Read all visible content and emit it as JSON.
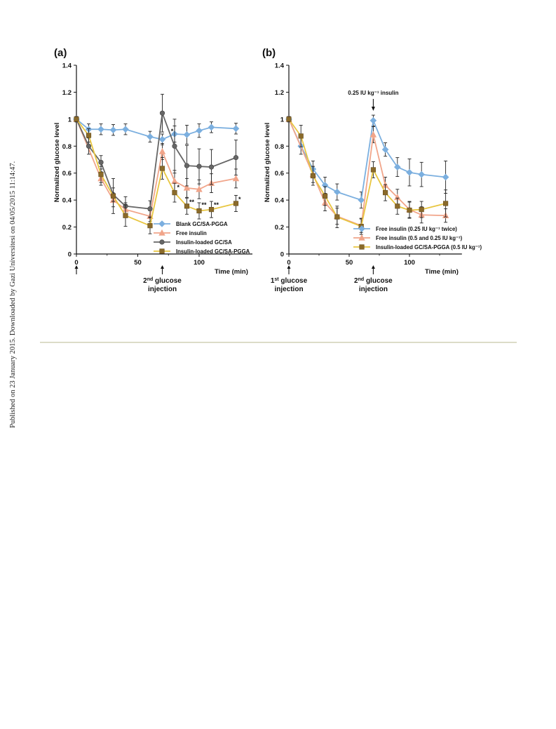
{
  "page": {
    "side_note": "Published on 23 January 2015. Downloaded by Gazi Universitesi on 04/05/2015 11:14:47."
  },
  "chart_data": [
    {
      "panel_label": "(a)",
      "type": "line",
      "xlabel": "Time (min)",
      "ylabel": "Normalized glucose level",
      "xlim": [
        0,
        140
      ],
      "ylim": [
        0,
        1.4
      ],
      "x_ticks": [
        "0",
        "50",
        "100"
      ],
      "y_ticks": [
        "0",
        "0.2",
        "0.4",
        "0.6",
        "0.8",
        "1",
        "1.2",
        "1.4"
      ],
      "legend_position": "bottom-right",
      "series": [
        {
          "name": "Blank GC/SA-PGGA",
          "color": "#7bafdf",
          "marker": "diamond",
          "x": [
            0,
            10,
            20,
            30,
            40,
            60,
            70,
            80,
            90,
            100,
            110,
            130
          ],
          "y": [
            1.0,
            0.925,
            0.925,
            0.92,
            0.925,
            0.87,
            0.85,
            0.89,
            0.885,
            0.915,
            0.94,
            0.93
          ],
          "err": [
            0.02,
            0.04,
            0.04,
            0.04,
            0.04,
            0.04,
            0.04,
            0.06,
            0.07,
            0.05,
            0.04,
            0.04
          ]
        },
        {
          "name": "Free insulin",
          "color": "#f1a58a",
          "marker": "triangle",
          "x": [
            0,
            20,
            30,
            40,
            60,
            70,
            80,
            90,
            100,
            110,
            130
          ],
          "y": [
            1.0,
            0.56,
            0.4,
            0.33,
            0.28,
            0.76,
            0.54,
            0.49,
            0.48,
            0.525,
            0.56
          ],
          "err": [
            0.02,
            0.05,
            0.05,
            0.05,
            0.04,
            0.06,
            0.08,
            0.07,
            0.07,
            0.07,
            0.07
          ]
        },
        {
          "name": "Insulin-loaded GC/SA",
          "color": "#666666",
          "marker": "circle",
          "x": [
            0,
            10,
            20,
            30,
            40,
            60,
            70,
            80,
            90,
            100,
            110,
            130
          ],
          "y": [
            1.0,
            0.8,
            0.68,
            0.44,
            0.355,
            0.335,
            1.045,
            0.8,
            0.655,
            0.65,
            0.645,
            0.715
          ],
          "err": [
            0.02,
            0.06,
            0.05,
            0.05,
            0.07,
            0.06,
            0.14,
            0.2,
            0.15,
            0.13,
            0.13,
            0.13
          ]
        },
        {
          "name": "Insulin-loaded GC/SA-PGGA",
          "color": "#e8c640",
          "marker": "square",
          "x": [
            0,
            10,
            20,
            30,
            40,
            60,
            70,
            80,
            90,
            100,
            110,
            130
          ],
          "y": [
            1.0,
            0.88,
            0.59,
            0.43,
            0.285,
            0.21,
            0.635,
            0.455,
            0.355,
            0.32,
            0.33,
            0.375
          ],
          "err": [
            0.02,
            0.05,
            0.06,
            0.13,
            0.08,
            0.06,
            0.08,
            0.07,
            0.06,
            0.06,
            0.06,
            0.06
          ]
        }
      ],
      "annotations": [
        {
          "text": "*",
          "x": 77,
          "y": 0.895
        },
        {
          "text": "*",
          "x": 82,
          "y": 0.48
        },
        {
          "text": "**",
          "x": 92,
          "y": 0.37
        },
        {
          "text": "**",
          "x": 102,
          "y": 0.35
        },
        {
          "text": "**",
          "x": 112,
          "y": 0.35
        },
        {
          "text": "*",
          "x": 132,
          "y": 0.39
        }
      ],
      "arrows": [
        {
          "x": 0,
          "label_main": "",
          "label_sup": "",
          "label_rest": "",
          "label_line2": ""
        },
        {
          "x": 70,
          "label_main": "2",
          "label_sup": "nd",
          "label_rest": " glucose",
          "label_line2": "injection"
        }
      ],
      "top_arrow": null
    },
    {
      "panel_label": "(b)",
      "type": "line",
      "xlabel": "Time (min)",
      "ylabel": "Normalized glucose level",
      "xlim": [
        0,
        140
      ],
      "ylim": [
        0,
        1.4
      ],
      "x_ticks": [
        "0",
        "50",
        "100"
      ],
      "y_ticks": [
        "0",
        "0.2",
        "0.4",
        "0.6",
        "0.8",
        "1",
        "1.2",
        "1.4"
      ],
      "legend_position": "bottom-right",
      "series": [
        {
          "name": "Free insulin (0.25 IU kg⁻¹ twice)",
          "color": "#7bafdf",
          "marker": "diamond",
          "x": [
            0,
            10,
            20,
            30,
            40,
            60,
            70,
            80,
            90,
            100,
            110,
            130
          ],
          "y": [
            1.0,
            0.8,
            0.63,
            0.51,
            0.46,
            0.4,
            0.99,
            0.775,
            0.645,
            0.605,
            0.59,
            0.57
          ],
          "err": [
            0.02,
            0.06,
            0.06,
            0.06,
            0.06,
            0.06,
            0.04,
            0.05,
            0.07,
            0.1,
            0.09,
            0.12
          ]
        },
        {
          "name": "Free insulin (0.5 and 0.25 IU kg⁻¹)",
          "color": "#f1a58a",
          "marker": "triangle",
          "x": [
            0,
            20,
            30,
            40,
            60,
            70,
            80,
            90,
            100,
            110,
            130
          ],
          "y": [
            1.0,
            0.59,
            0.38,
            0.28,
            0.21,
            0.885,
            0.51,
            0.42,
            0.33,
            0.29,
            0.285
          ],
          "err": [
            0.02,
            0.06,
            0.06,
            0.06,
            0.05,
            0.06,
            0.06,
            0.06,
            0.06,
            0.06,
            0.05
          ]
        },
        {
          "name": "Insulin-loaded GC/SA-PGGA (0.5 IU kg⁻¹)",
          "color": "#e8c640",
          "marker": "square",
          "x": [
            0,
            10,
            20,
            30,
            40,
            60,
            70,
            80,
            90,
            100,
            110,
            130
          ],
          "y": [
            1.0,
            0.875,
            0.58,
            0.43,
            0.275,
            0.205,
            0.625,
            0.455,
            0.355,
            0.325,
            0.33,
            0.375
          ],
          "err": [
            0.02,
            0.08,
            0.07,
            0.07,
            0.08,
            0.06,
            0.06,
            0.06,
            0.06,
            0.06,
            0.06,
            0.1
          ]
        }
      ],
      "annotations": [],
      "arrows": [
        {
          "x": 0,
          "label_main": "1",
          "label_sup": "st",
          "label_rest": " glucose",
          "label_line2": "injection"
        },
        {
          "x": 70,
          "label_main": "2",
          "label_sup": "nd",
          "label_rest": " glucose",
          "label_line2": "injection"
        }
      ],
      "top_arrow": {
        "x": 70,
        "label": "0.25 IU kg⁻¹ insulin"
      }
    }
  ]
}
